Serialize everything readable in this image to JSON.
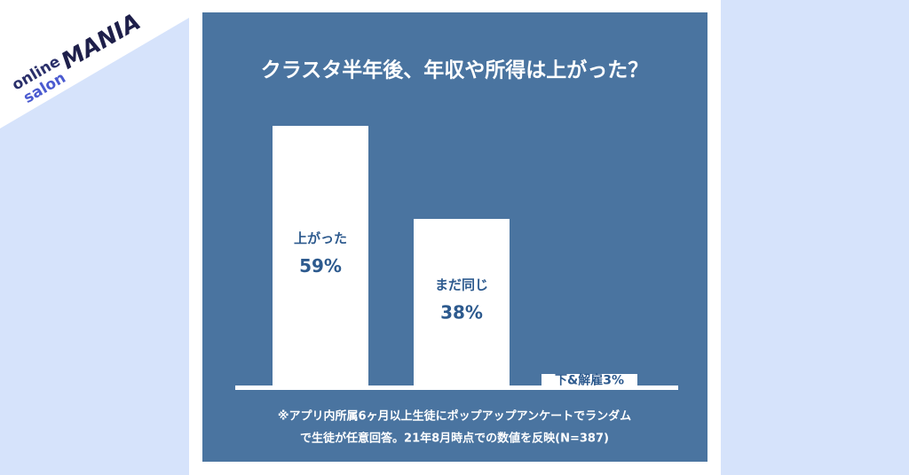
{
  "logo": {
    "line1": "online",
    "line2": "salon",
    "brand": "MANIA"
  },
  "chart_data": {
    "type": "bar",
    "title": "クラスタ半年後、年収や所得は上がった？",
    "categories": [
      "上がった",
      "まだ同じ",
      "下&解雇"
    ],
    "values": [
      59,
      38,
      3
    ],
    "value_labels": [
      "59%",
      "38%",
      "3%"
    ],
    "color": "#ffffff",
    "note": [
      "※アプリ内所属6ヶ月以上生徒にポップアップアンケートでランダム",
      "で生徒が任意回答。21年8月時点での数値を反映(N=387)"
    ]
  }
}
